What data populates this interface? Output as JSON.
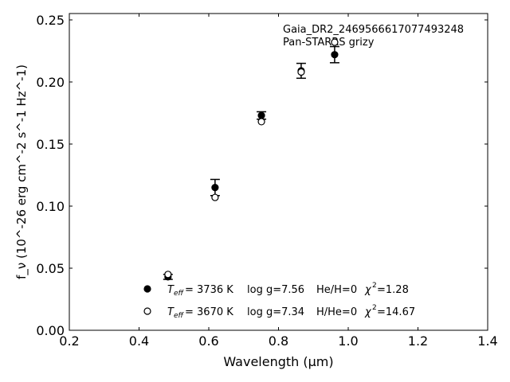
{
  "chart_data": {
    "type": "scatter",
    "title": "",
    "annotation": [
      "Gaia_DR2_2469566617077493248",
      "Pan-STARRS grizy"
    ],
    "xlabel": "Wavelength (μm)",
    "ylabel": "f_ν (10^-26 erg cm^-2 s^-1 Hz^-1)",
    "xlim": [
      0.2,
      1.4
    ],
    "ylim": [
      0,
      0.255
    ],
    "xticks": [
      "0.2",
      "0.4",
      "0.6",
      "0.8",
      "1.0",
      "1.2",
      "1.4"
    ],
    "yticks": [
      "0.00",
      "0.05",
      "0.10",
      "0.15",
      "0.20",
      "0.25"
    ],
    "grid": false,
    "x": [
      0.483,
      0.618,
      0.751,
      0.865,
      0.961
    ],
    "observed": {
      "values": [
        0.043,
        0.115,
        0.173,
        0.209,
        0.222
      ],
      "errors": [
        0.002,
        0.0065,
        0.003,
        0.006,
        0.0065
      ]
    },
    "series": [
      {
        "name": "model_H",
        "marker": "filled",
        "values": [
          0.043,
          0.115,
          0.173,
          0.209,
          0.222
        ],
        "label": {
          "teff": "3736 K",
          "logg": "log g=7.56",
          "comp": "He/H=0",
          "chi2": "=1.28"
        }
      },
      {
        "name": "model_He",
        "marker": "open",
        "values": [
          0.045,
          0.107,
          0.168,
          0.208,
          0.232
        ],
        "label": {
          "teff": "3670 K",
          "logg": "log g=7.34",
          "comp": "H/He=0",
          "chi2": "=14.67"
        }
      }
    ],
    "legend_placement": "lower-center"
  }
}
